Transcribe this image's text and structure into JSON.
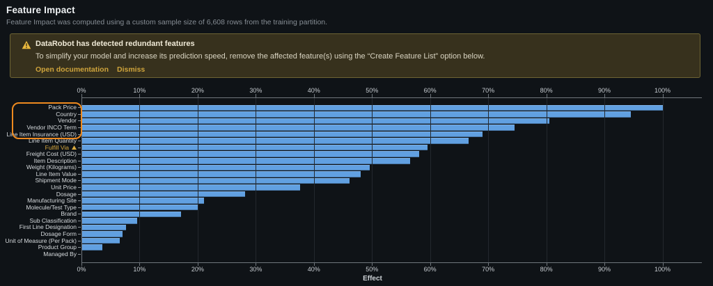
{
  "page": {
    "title": "Feature Impact",
    "subtitle": "Feature Impact was computed using a custom sample size of 6,608 rows from the training partition."
  },
  "banner": {
    "icon": "warning-triangle-icon",
    "title": "DataRobot has detected redundant features",
    "body": "To simplify your model and increase its prediction speed, remove the affected feature(s) using the “Create Feature List” option below.",
    "links": {
      "documentation": "Open documentation",
      "dismiss": "Dismiss"
    }
  },
  "colors": {
    "background": "#0f1317",
    "bar_blue": "#61a0e1",
    "accent_orange": "#ee8a1f",
    "warning_amber": "#d7a83e",
    "banner_bg": "#37311d",
    "banner_border": "#6e6434",
    "axis_gray": "#70767c"
  },
  "chart_data": {
    "type": "bar",
    "orientation": "horizontal",
    "title": "Feature Impact",
    "xlabel": "Effect",
    "ylabel": "",
    "xlim": [
      0,
      100
    ],
    "x_ticks": [
      "0%",
      "10%",
      "20%",
      "30%",
      "40%",
      "50%",
      "60%",
      "70%",
      "80%",
      "90%",
      "100%"
    ],
    "grid": true,
    "legend": false,
    "categories": [
      "Pack Price",
      "Country",
      "Vendor",
      "Vendor INCO Term",
      "Line Item Insurance (USD)",
      "Line Item Quantity",
      "Fulfill Via",
      "Freight Cost (USD)",
      "Item Description",
      "Weight (Kilograms)",
      "Line Item Value",
      "Shipment Mode",
      "Unit Price",
      "Dosage",
      "Manufacturing Site",
      "Molecule/Test Type",
      "Brand",
      "Sub Classification",
      "First Line Designation",
      "Dosage Form",
      "Unit of Measure (Per Pack)",
      "Product Group",
      "Managed By"
    ],
    "values": [
      100,
      94.5,
      80.5,
      74.5,
      69,
      66.5,
      59.5,
      58,
      56.5,
      49.5,
      48,
      46,
      37.5,
      28,
      21,
      20,
      17,
      9.5,
      7.5,
      7,
      6.5,
      3.5,
      0
    ],
    "annotations": {
      "redundant_group_box": {
        "color": "#ee8a1f",
        "features": [
          "Pack Price",
          "Country",
          "Vendor",
          "Vendor INCO Term",
          "Line Item Insurance (USD)"
        ]
      },
      "warned_feature": {
        "name": "Fulfill Via",
        "color": "#d7a83e",
        "icon": "redundant-warning-icon"
      }
    }
  }
}
